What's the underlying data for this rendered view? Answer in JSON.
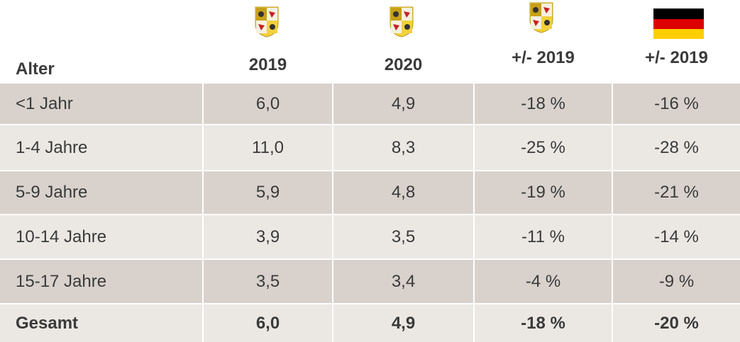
{
  "table": {
    "header": [
      "Alter",
      "2019",
      "2020",
      "+/- 2019",
      "+/- 2019"
    ],
    "rows": [
      [
        "<1 Jahr",
        "6,0",
        "4,9",
        "-18 %",
        "-16 %"
      ],
      [
        "1-4 Jahre",
        "11,0",
        "8,3",
        "-25 %",
        "-28 %"
      ],
      [
        "5-9 Jahre",
        "5,9",
        "4,8",
        "-19 %",
        "-21 %"
      ],
      [
        "10-14 Jahre",
        "3,9",
        "3,5",
        "-11 %",
        "-14 %"
      ],
      [
        "15-17 Jahre",
        "3,5",
        "3,4",
        "-4 %",
        "-9 %"
      ],
      [
        "Gesamt",
        "6,0",
        "4,9",
        "-18 %",
        "-20 %"
      ]
    ]
  }
}
